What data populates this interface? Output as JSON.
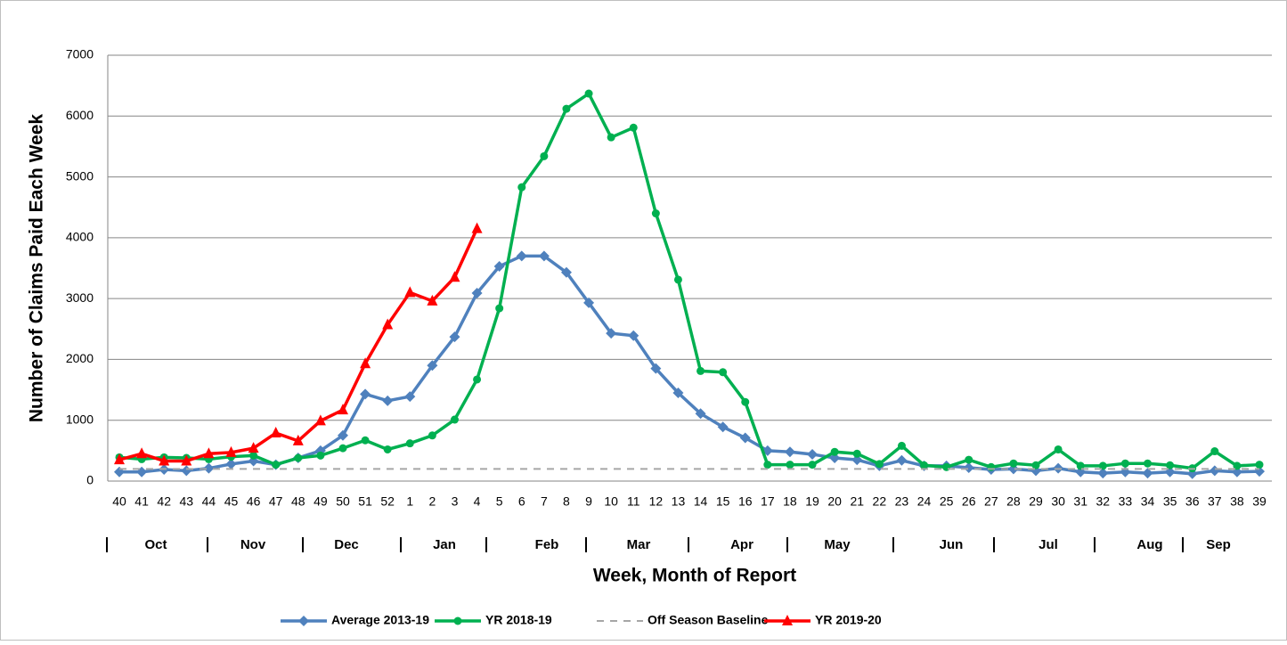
{
  "chart_data": {
    "type": "line",
    "y_label": "Number of Claims Paid Each Week",
    "x_label": "Week, Month of Report",
    "categories": [
      "40",
      "41",
      "42",
      "43",
      "44",
      "45",
      "46",
      "47",
      "48",
      "49",
      "50",
      "51",
      "52",
      "1",
      "2",
      "3",
      "4",
      "5",
      "6",
      "7",
      "8",
      "9",
      "10",
      "11",
      "12",
      "13",
      "14",
      "15",
      "16",
      "17",
      "18",
      "19",
      "20",
      "21",
      "22",
      "23",
      "24",
      "25",
      "26",
      "27",
      "28",
      "29",
      "30",
      "31",
      "32",
      "33",
      "34",
      "35",
      "36",
      "37",
      "38",
      "39"
    ],
    "months": [
      "Oct",
      "Nov",
      "Dec",
      "Jan",
      "Feb",
      "Mar",
      "Apr",
      "May",
      "Jun",
      "Jul",
      "Aug",
      "Sep"
    ],
    "ylim": [
      0,
      7000
    ],
    "yticks": [
      0,
      1000,
      2000,
      3000,
      4000,
      5000,
      6000,
      7000
    ],
    "grid": true,
    "series": [
      {
        "name": "Average 2013-19",
        "color": "#4f81bd",
        "marker": "diamond",
        "values": [
          150,
          150,
          190,
          170,
          210,
          280,
          330,
          270,
          380,
          500,
          750,
          1430,
          1320,
          1390,
          1900,
          2370,
          3090,
          3530,
          3700,
          3700,
          3430,
          2930,
          2430,
          2390,
          1850,
          1450,
          1110,
          890,
          710,
          500,
          480,
          440,
          380,
          350,
          250,
          340,
          250,
          250,
          220,
          190,
          200,
          170,
          210,
          150,
          130,
          150,
          130,
          150,
          120,
          170,
          150,
          160
        ]
      },
      {
        "name": "YR 2018-19",
        "color": "#00b050",
        "marker": "circle",
        "values": [
          390,
          360,
          390,
          380,
          360,
          400,
          420,
          270,
          380,
          420,
          540,
          670,
          520,
          620,
          750,
          1010,
          1670,
          2840,
          4830,
          5340,
          6120,
          6370,
          5650,
          5810,
          4400,
          3310,
          1810,
          1790,
          1300,
          270,
          270,
          270,
          480,
          450,
          280,
          580,
          260,
          230,
          350,
          230,
          290,
          260,
          520,
          250,
          250,
          290,
          290,
          260,
          210,
          490,
          250,
          270
        ]
      },
      {
        "name": "Off Season Baseline",
        "color": "#a6a6a6",
        "marker": "none",
        "dash": true,
        "values": [
          200,
          200,
          200,
          200,
          200,
          200,
          200,
          200,
          200,
          200,
          200,
          200,
          200,
          200,
          200,
          200,
          200,
          200,
          200,
          200,
          200,
          200,
          200,
          200,
          200,
          200,
          200,
          200,
          200,
          200,
          200,
          200,
          200,
          200,
          200,
          200,
          200,
          200,
          200,
          200,
          200,
          200,
          200,
          200,
          200,
          200,
          200,
          200,
          200,
          200,
          200,
          200
        ]
      },
      {
        "name": "YR 2019-20",
        "color": "#ff0000",
        "marker": "triangle",
        "values": [
          350,
          450,
          330,
          330,
          450,
          470,
          540,
          790,
          660,
          990,
          1170,
          1930,
          2570,
          3100,
          2960,
          3350,
          4150,
          null,
          null,
          null,
          null,
          null,
          null,
          null,
          null,
          null,
          null,
          null,
          null,
          null,
          null,
          null,
          null,
          null,
          null,
          null,
          null,
          null,
          null,
          null,
          null,
          null,
          null,
          null,
          null,
          null,
          null,
          null,
          null,
          null,
          null,
          null
        ]
      }
    ]
  }
}
